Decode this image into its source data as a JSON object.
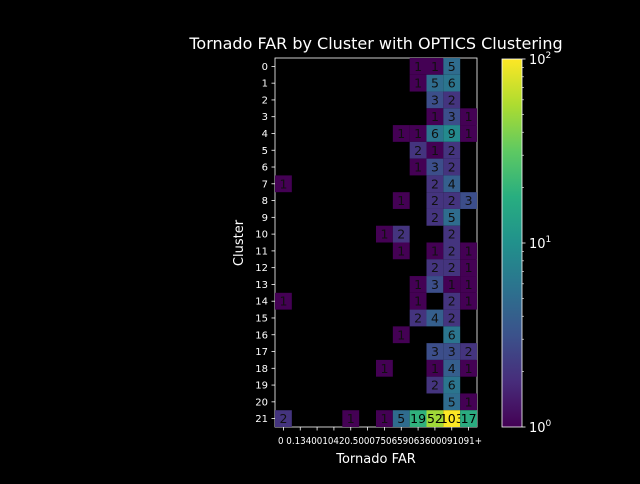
{
  "chart_data": {
    "type": "heatmap",
    "title": "Tornado FAR by Cluster with OPTICS Clustering",
    "xlabel": "Tornado FAR",
    "ylabel": "Cluster",
    "x_categories": [
      "0",
      "0.1",
      "0.2",
      "0.3",
      "0.4",
      "0.5",
      "0.6",
      "0.7",
      "0.8",
      "0.9",
      "1.0",
      "1.1+"
    ],
    "x_tick_text": "0 0.1340010420.5000750659063600091091+",
    "y_categories": [
      "0",
      "1",
      "2",
      "3",
      "4",
      "5",
      "6",
      "7",
      "8",
      "9",
      "10",
      "11",
      "12",
      "13",
      "14",
      "15",
      "16",
      "17",
      "18",
      "19",
      "20",
      "21"
    ],
    "cells": [
      [
        0,
        8,
        1
      ],
      [
        0,
        9,
        1
      ],
      [
        0,
        10,
        5
      ],
      [
        1,
        8,
        1
      ],
      [
        1,
        9,
        5
      ],
      [
        1,
        10,
        6
      ],
      [
        2,
        9,
        3
      ],
      [
        2,
        10,
        2
      ],
      [
        3,
        9,
        1
      ],
      [
        3,
        10,
        3
      ],
      [
        3,
        11,
        1
      ],
      [
        4,
        7,
        1
      ],
      [
        4,
        8,
        1
      ],
      [
        4,
        9,
        6
      ],
      [
        4,
        10,
        9
      ],
      [
        4,
        11,
        1
      ],
      [
        5,
        8,
        2
      ],
      [
        5,
        9,
        1
      ],
      [
        5,
        10,
        2
      ],
      [
        6,
        8,
        1
      ],
      [
        6,
        9,
        3
      ],
      [
        6,
        10,
        2
      ],
      [
        7,
        0,
        1
      ],
      [
        7,
        9,
        2
      ],
      [
        7,
        10,
        4
      ],
      [
        8,
        7,
        1
      ],
      [
        8,
        9,
        2
      ],
      [
        8,
        10,
        2
      ],
      [
        8,
        11,
        3
      ],
      [
        9,
        9,
        2
      ],
      [
        9,
        10,
        5
      ],
      [
        10,
        6,
        1
      ],
      [
        10,
        7,
        2
      ],
      [
        10,
        10,
        2
      ],
      [
        11,
        7,
        1
      ],
      [
        11,
        9,
        1
      ],
      [
        11,
        10,
        2
      ],
      [
        11,
        11,
        1
      ],
      [
        12,
        9,
        2
      ],
      [
        12,
        10,
        2
      ],
      [
        12,
        11,
        1
      ],
      [
        13,
        8,
        1
      ],
      [
        13,
        9,
        3
      ],
      [
        13,
        10,
        1
      ],
      [
        13,
        11,
        1
      ],
      [
        14,
        0,
        1
      ],
      [
        14,
        8,
        1
      ],
      [
        14,
        10,
        2
      ],
      [
        14,
        11,
        1
      ],
      [
        15,
        8,
        2
      ],
      [
        15,
        9,
        4
      ],
      [
        15,
        10,
        2
      ],
      [
        16,
        7,
        1
      ],
      [
        16,
        10,
        6
      ],
      [
        17,
        9,
        3
      ],
      [
        17,
        10,
        3
      ],
      [
        17,
        11,
        2
      ],
      [
        18,
        6,
        1
      ],
      [
        18,
        9,
        1
      ],
      [
        18,
        10,
        4
      ],
      [
        18,
        11,
        1
      ],
      [
        19,
        9,
        2
      ],
      [
        19,
        10,
        6
      ],
      [
        20,
        10,
        5
      ],
      [
        20,
        11,
        1
      ],
      [
        21,
        0,
        2
      ],
      [
        21,
        4,
        1
      ],
      [
        21,
        6,
        1
      ],
      [
        21,
        7,
        5
      ],
      [
        21,
        8,
        19
      ],
      [
        21,
        9,
        52
      ],
      [
        21,
        10,
        103
      ],
      [
        21,
        11,
        17
      ]
    ],
    "colorbar": {
      "scale": "log",
      "range": [
        1,
        100
      ],
      "ticks": [
        {
          "value": 1,
          "base": "10",
          "exp": "0"
        },
        {
          "value": 10,
          "base": "10",
          "exp": "1"
        },
        {
          "value": 100,
          "base": "10",
          "exp": "2"
        }
      ],
      "colormap": "viridis"
    },
    "background": "#000000",
    "text_color": "#ffffff",
    "grid": false
  }
}
